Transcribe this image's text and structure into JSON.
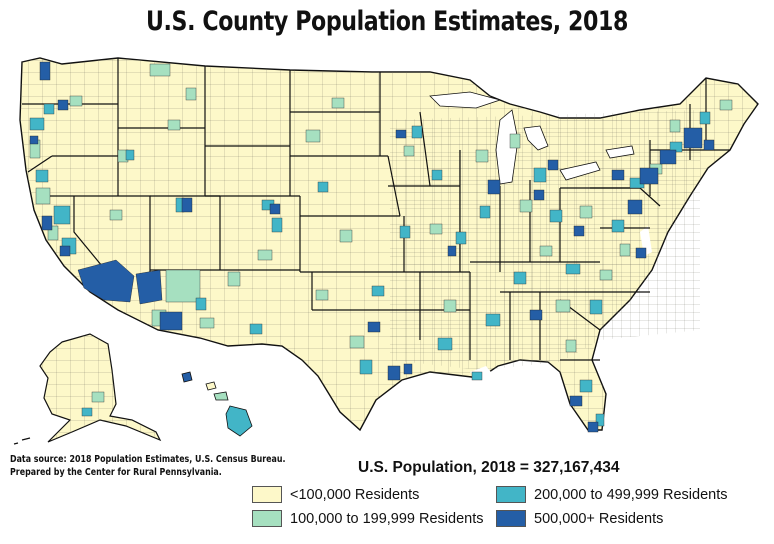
{
  "title": "U.S. County Population Estimates, 2018",
  "source": {
    "line1": "Data source: 2018 Population Estimates, U.S. Census Bureau.",
    "line2": "Prepared by the Center for Rural Pennsylvania."
  },
  "total_label": "U.S. Population, 2018 = 327,167,434",
  "colors": {
    "under_100k": "#fdf8c9",
    "100k_199k": "#a6e0c0",
    "200k_499k": "#42b5c7",
    "500k_plus": "#245ea6",
    "border": "#333333",
    "state_border": "#111111"
  },
  "legend": [
    {
      "label": "<100,000 Residents",
      "color_key": "under_100k"
    },
    {
      "label": "100,000 to 199,999 Residents",
      "color_key": "100k_199k"
    },
    {
      "label": "200,000 to 499,999 Residents",
      "color_key": "200k_499k"
    },
    {
      "label": "500,000+ Residents",
      "color_key": "500k_plus"
    }
  ]
}
